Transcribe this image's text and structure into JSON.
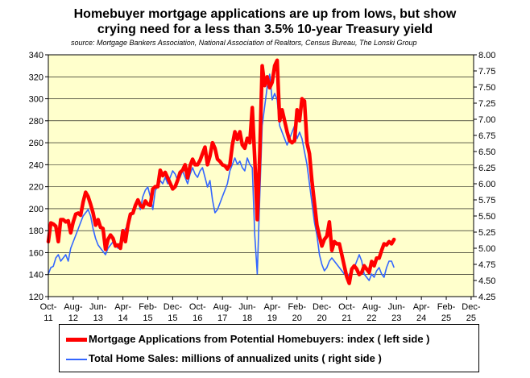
{
  "title_lines": [
    "Homebuyer mortgage applications are up from lows, but show",
    "crying need for a less than 3.5% 10-year Treasury yield"
  ],
  "source": "source: Mortgage Bankers Association, National Association of Realtors, Census Bureau, The Lonski Group",
  "colors": {
    "mortgage": "#ff0000",
    "sales": "#3366ff",
    "plot_bg": "#ffffcc"
  },
  "chart_data": {
    "type": "line",
    "x_tick_labels": [
      [
        "Oct-",
        "11"
      ],
      [
        "Aug-",
        "12"
      ],
      [
        "Jun-",
        "13"
      ],
      [
        "Apr-",
        "14"
      ],
      [
        "Feb-",
        "15"
      ],
      [
        "Dec-",
        "15"
      ],
      [
        "Oct-",
        "16"
      ],
      [
        "Aug-",
        "17"
      ],
      [
        "Jun-",
        "18"
      ],
      [
        "Apr-",
        "19"
      ],
      [
        "Feb-",
        "20"
      ],
      [
        "Dec-",
        "20"
      ],
      [
        "Oct-",
        "21"
      ],
      [
        "Aug-",
        "22"
      ],
      [
        "Jun-",
        "23"
      ],
      [
        "Apr-",
        "24"
      ],
      [
        "Feb-",
        "25"
      ],
      [
        "Dec-",
        "25"
      ]
    ],
    "x_tick_months": [
      0,
      10,
      20,
      30,
      40,
      50,
      60,
      70,
      80,
      90,
      100,
      110,
      120,
      130,
      140,
      150,
      160,
      170
    ],
    "x_range_months": [
      0,
      171
    ],
    "left_axis": {
      "min": 120,
      "max": 340,
      "step": 20,
      "labels": [
        "120",
        "140",
        "160",
        "180",
        "200",
        "220",
        "240",
        "260",
        "280",
        "300",
        "320",
        "340"
      ]
    },
    "right_axis": {
      "min": 4.25,
      "max": 8.0,
      "step": 0.25,
      "labels": [
        "4.25",
        "4.50",
        "4.75",
        "5.00",
        "5.25",
        "5.50",
        "5.75",
        "6.00",
        "6.25",
        "6.50",
        "6.75",
        "7.00",
        "7.25",
        "7.50",
        "7.75",
        "8.00"
      ]
    },
    "series": [
      {
        "name": "Mortgage Applications from Potential Homebuyers: index ( left side )",
        "axis": "left",
        "points": [
          [
            0,
            170
          ],
          [
            1,
            187
          ],
          [
            2,
            186
          ],
          [
            3,
            184
          ],
          [
            4,
            170
          ],
          [
            5,
            190
          ],
          [
            6,
            190
          ],
          [
            7,
            188
          ],
          [
            8,
            189
          ],
          [
            9,
            178
          ],
          [
            10,
            188
          ],
          [
            11,
            195
          ],
          [
            12,
            196
          ],
          [
            13,
            194
          ],
          [
            14,
            206
          ],
          [
            15,
            215
          ],
          [
            16,
            211
          ],
          [
            17,
            204
          ],
          [
            18,
            196
          ],
          [
            19,
            185
          ],
          [
            20,
            190
          ],
          [
            21,
            183
          ],
          [
            22,
            182
          ],
          [
            23,
            163
          ],
          [
            24,
            172
          ],
          [
            25,
            176
          ],
          [
            26,
            173
          ],
          [
            27,
            166
          ],
          [
            28,
            167
          ],
          [
            29,
            164
          ],
          [
            30,
            180
          ],
          [
            31,
            170
          ],
          [
            32,
            185
          ],
          [
            33,
            195
          ],
          [
            34,
            196
          ],
          [
            35,
            203
          ],
          [
            36,
            208
          ],
          [
            37,
            203
          ],
          [
            38,
            201
          ],
          [
            39,
            207
          ],
          [
            40,
            204
          ],
          [
            41,
            203
          ],
          [
            42,
            218
          ],
          [
            43,
            220
          ],
          [
            44,
            220
          ],
          [
            45,
            235
          ],
          [
            46,
            230
          ],
          [
            47,
            233
          ],
          [
            48,
            228
          ],
          [
            49,
            223
          ],
          [
            50,
            218
          ],
          [
            51,
            220
          ],
          [
            52,
            226
          ],
          [
            53,
            233
          ],
          [
            54,
            235
          ],
          [
            55,
            240
          ],
          [
            56,
            228
          ],
          [
            57,
            239
          ],
          [
            58,
            245
          ],
          [
            59,
            240
          ],
          [
            60,
            240
          ],
          [
            61,
            244
          ],
          [
            62,
            250
          ],
          [
            63,
            256
          ],
          [
            64,
            240
          ],
          [
            65,
            248
          ],
          [
            66,
            260
          ],
          [
            67,
            255
          ],
          [
            68,
            245
          ],
          [
            69,
            243
          ],
          [
            70,
            240
          ],
          [
            71,
            239
          ],
          [
            72,
            236
          ],
          [
            73,
            240
          ],
          [
            74,
            258
          ],
          [
            75,
            270
          ],
          [
            76,
            263
          ],
          [
            77,
            270
          ],
          [
            78,
            258
          ],
          [
            79,
            255
          ],
          [
            80,
            264
          ],
          [
            81,
            260
          ],
          [
            82,
            292
          ],
          [
            83,
            245
          ],
          [
            84,
            190
          ],
          [
            85,
            250
          ],
          [
            86,
            330
          ],
          [
            87,
            312
          ],
          [
            88,
            320
          ],
          [
            89,
            310
          ],
          [
            90,
            315
          ],
          [
            91,
            330
          ],
          [
            92,
            335
          ],
          [
            93,
            280
          ],
          [
            94,
            290
          ],
          [
            95,
            280
          ],
          [
            96,
            270
          ],
          [
            97,
            262
          ],
          [
            98,
            260
          ],
          [
            99,
            262
          ],
          [
            100,
            290
          ],
          [
            101,
            280
          ],
          [
            102,
            300
          ],
          [
            103,
            298
          ],
          [
            104,
            260
          ],
          [
            105,
            250
          ],
          [
            106,
            225
          ],
          [
            107,
            205
          ],
          [
            108,
            185
          ],
          [
            109,
            175
          ],
          [
            110,
            166
          ],
          [
            111,
            172
          ],
          [
            112,
            175
          ],
          [
            113,
            188
          ],
          [
            114,
            162
          ],
          [
            115,
            170
          ],
          [
            116,
            168
          ],
          [
            117,
            168
          ],
          [
            118,
            158
          ],
          [
            119,
            148
          ],
          [
            120,
            138
          ],
          [
            121,
            132
          ],
          [
            122,
            145
          ],
          [
            123,
            148
          ],
          [
            124,
            145
          ],
          [
            125,
            140
          ],
          [
            126,
            142
          ],
          [
            127,
            148
          ],
          [
            128,
            145
          ],
          [
            129,
            142
          ],
          [
            130,
            152
          ],
          [
            131,
            148
          ],
          [
            132,
            155
          ],
          [
            133,
            155
          ],
          [
            134,
            162
          ],
          [
            135,
            168
          ],
          [
            136,
            167
          ],
          [
            137,
            170
          ],
          [
            138,
            168
          ],
          [
            139,
            172
          ]
        ]
      },
      {
        "name": "Total Home Sales: millions of annualized units ( right side )",
        "axis": "right",
        "points": [
          [
            0,
            4.6
          ],
          [
            1,
            4.7
          ],
          [
            2,
            4.72
          ],
          [
            3,
            4.85
          ],
          [
            4,
            4.9
          ],
          [
            5,
            4.8
          ],
          [
            6,
            4.85
          ],
          [
            7,
            4.9
          ],
          [
            8,
            4.8
          ],
          [
            9,
            5.0
          ],
          [
            10,
            5.1
          ],
          [
            11,
            5.2
          ],
          [
            12,
            5.3
          ],
          [
            13,
            5.4
          ],
          [
            14,
            5.5
          ],
          [
            15,
            5.55
          ],
          [
            16,
            5.6
          ],
          [
            17,
            5.5
          ],
          [
            18,
            5.3
          ],
          [
            19,
            5.15
          ],
          [
            20,
            5.05
          ],
          [
            21,
            5.0
          ],
          [
            22,
            4.95
          ],
          [
            23,
            4.9
          ],
          [
            24,
            5.0
          ],
          [
            25,
            5.05
          ],
          [
            26,
            5.1
          ],
          [
            27,
            5.05
          ],
          [
            28,
            5.0
          ],
          [
            29,
            5.1
          ],
          [
            30,
            5.2
          ],
          [
            31,
            5.3
          ],
          [
            32,
            5.35
          ],
          [
            33,
            5.45
          ],
          [
            34,
            5.6
          ],
          [
            35,
            5.7
          ],
          [
            36,
            5.75
          ],
          [
            37,
            5.6
          ],
          [
            38,
            5.8
          ],
          [
            39,
            5.9
          ],
          [
            40,
            5.95
          ],
          [
            41,
            5.8
          ],
          [
            42,
            5.6
          ],
          [
            43,
            5.9
          ],
          [
            44,
            5.95
          ],
          [
            45,
            6.05
          ],
          [
            46,
            6.0
          ],
          [
            47,
            6.1
          ],
          [
            48,
            6.0
          ],
          [
            49,
            6.1
          ],
          [
            50,
            6.2
          ],
          [
            51,
            6.15
          ],
          [
            52,
            6.05
          ],
          [
            53,
            6.1
          ],
          [
            54,
            6.2
          ],
          [
            55,
            6.1
          ],
          [
            56,
            6.0
          ],
          [
            57,
            6.15
          ],
          [
            58,
            6.25
          ],
          [
            59,
            6.15
          ],
          [
            60,
            6.1
          ],
          [
            61,
            6.2
          ],
          [
            62,
            6.25
          ],
          [
            63,
            6.1
          ],
          [
            64,
            5.95
          ],
          [
            65,
            6.05
          ],
          [
            66,
            5.75
          ],
          [
            67,
            5.55
          ],
          [
            68,
            5.6
          ],
          [
            69,
            5.7
          ],
          [
            70,
            5.8
          ],
          [
            71,
            5.9
          ],
          [
            72,
            6.0
          ],
          [
            73,
            6.2
          ],
          [
            74,
            6.3
          ],
          [
            75,
            6.4
          ],
          [
            76,
            6.3
          ],
          [
            77,
            6.35
          ],
          [
            78,
            6.25
          ],
          [
            79,
            6.2
          ],
          [
            80,
            6.4
          ],
          [
            81,
            6.3
          ],
          [
            82,
            6.25
          ],
          [
            83,
            5.2
          ],
          [
            84,
            4.6
          ],
          [
            85,
            5.8
          ],
          [
            86,
            6.9
          ],
          [
            87,
            7.2
          ],
          [
            88,
            7.5
          ],
          [
            89,
            7.7
          ],
          [
            90,
            7.3
          ],
          [
            91,
            7.4
          ],
          [
            92,
            7.3
          ],
          [
            93,
            6.9
          ],
          [
            94,
            6.8
          ],
          [
            95,
            6.7
          ],
          [
            96,
            6.6
          ],
          [
            97,
            6.7
          ],
          [
            98,
            6.8
          ],
          [
            99,
            6.9
          ],
          [
            100,
            6.7
          ],
          [
            101,
            6.8
          ],
          [
            102,
            6.7
          ],
          [
            103,
            6.5
          ],
          [
            104,
            6.3
          ],
          [
            105,
            6.0
          ],
          [
            106,
            5.7
          ],
          [
            107,
            5.4
          ],
          [
            108,
            5.2
          ],
          [
            109,
            4.9
          ],
          [
            110,
            4.75
          ],
          [
            111,
            4.65
          ],
          [
            112,
            4.7
          ],
          [
            113,
            4.8
          ],
          [
            114,
            4.85
          ],
          [
            115,
            4.8
          ],
          [
            116,
            4.75
          ],
          [
            117,
            4.7
          ],
          [
            118,
            4.65
          ],
          [
            119,
            4.6
          ],
          [
            120,
            4.55
          ],
          [
            121,
            4.6
          ],
          [
            122,
            4.65
          ],
          [
            123,
            4.7
          ],
          [
            124,
            4.8
          ],
          [
            125,
            4.9
          ],
          [
            126,
            4.8
          ],
          [
            127,
            4.6
          ],
          [
            128,
            4.55
          ],
          [
            129,
            4.5
          ],
          [
            130,
            4.6
          ],
          [
            131,
            4.55
          ],
          [
            132,
            4.65
          ],
          [
            133,
            4.7
          ],
          [
            134,
            4.6
          ],
          [
            135,
            4.55
          ],
          [
            136,
            4.7
          ],
          [
            137,
            4.8
          ],
          [
            138,
            4.8
          ],
          [
            139,
            4.7
          ]
        ]
      }
    ],
    "grid": true,
    "legend_position": "bottom"
  }
}
